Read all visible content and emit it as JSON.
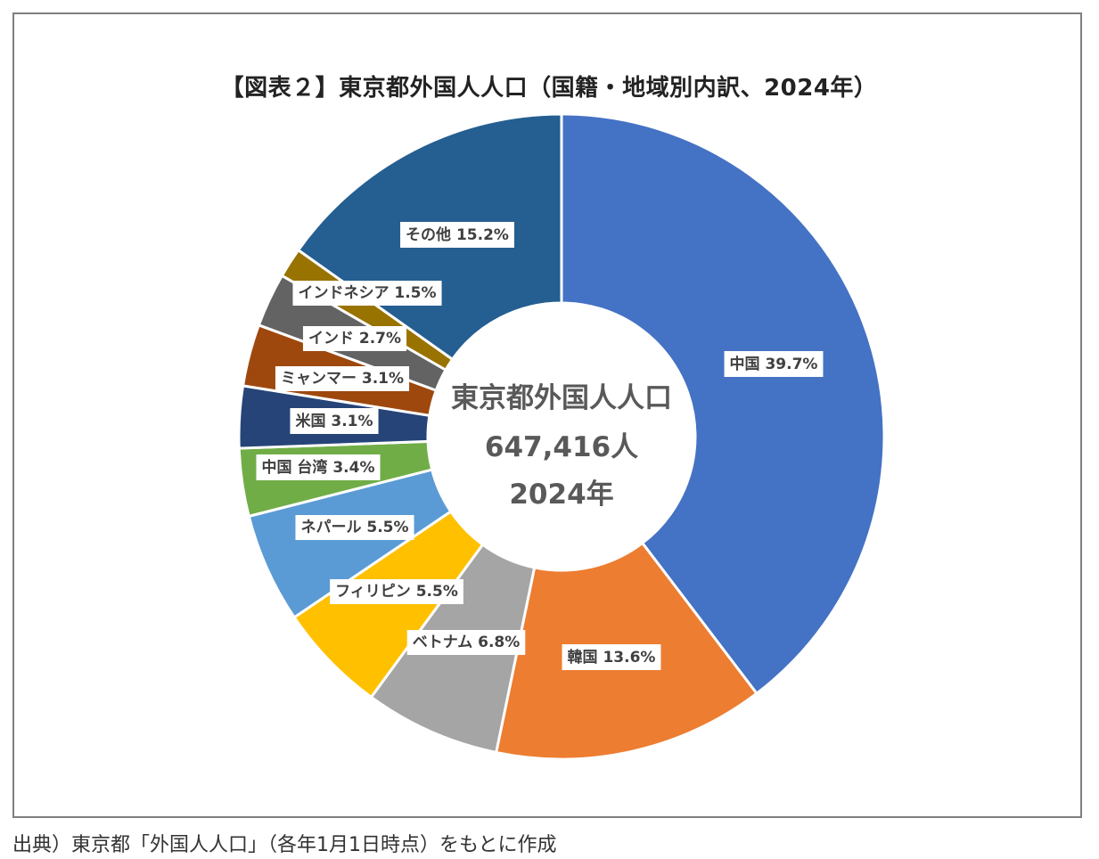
{
  "source_note": "出典）東京都「外国人人口」（各年1月1日時点）をもとに作成",
  "chart_data": {
    "type": "pie",
    "title": "【図表２】東京都外国人人口（国籍・地域別内訳、2024年）",
    "center_text": [
      "東京都外国人人口",
      "647,416人",
      "2024年"
    ],
    "slices": [
      {
        "label": "中国",
        "value": 39.7,
        "data_label": "中国 39.7%",
        "color": "#4472c4"
      },
      {
        "label": "韓国",
        "value": 13.6,
        "data_label": "韓国 13.6%",
        "color": "#ed7d31"
      },
      {
        "label": "ベトナム",
        "value": 6.8,
        "data_label": "ベトナム 6.8%",
        "color": "#a5a5a5"
      },
      {
        "label": "フィリピン",
        "value": 5.5,
        "data_label": "フィリピン 5.5%",
        "color": "#ffc000"
      },
      {
        "label": "ネパール",
        "value": 5.5,
        "data_label": "ネパール 5.5%",
        "color": "#5b9bd5"
      },
      {
        "label": "中国 台湾",
        "value": 3.4,
        "data_label": "中国 台湾 3.4%",
        "color": "#70ad47"
      },
      {
        "label": "米国",
        "value": 3.1,
        "data_label": "米国 3.1%",
        "color": "#264478"
      },
      {
        "label": "ミャンマー",
        "value": 3.1,
        "data_label": "ミャンマー 3.1%",
        "color": "#9e480e"
      },
      {
        "label": "インド",
        "value": 2.7,
        "data_label": "インド 2.7%",
        "color": "#636363"
      },
      {
        "label": "インドネシア",
        "value": 1.5,
        "data_label": "インドネシア 1.5%",
        "color": "#997300"
      },
      {
        "label": "その他",
        "value": 15.2,
        "data_label": "その他 15.2%",
        "color": "#255e91"
      }
    ]
  }
}
